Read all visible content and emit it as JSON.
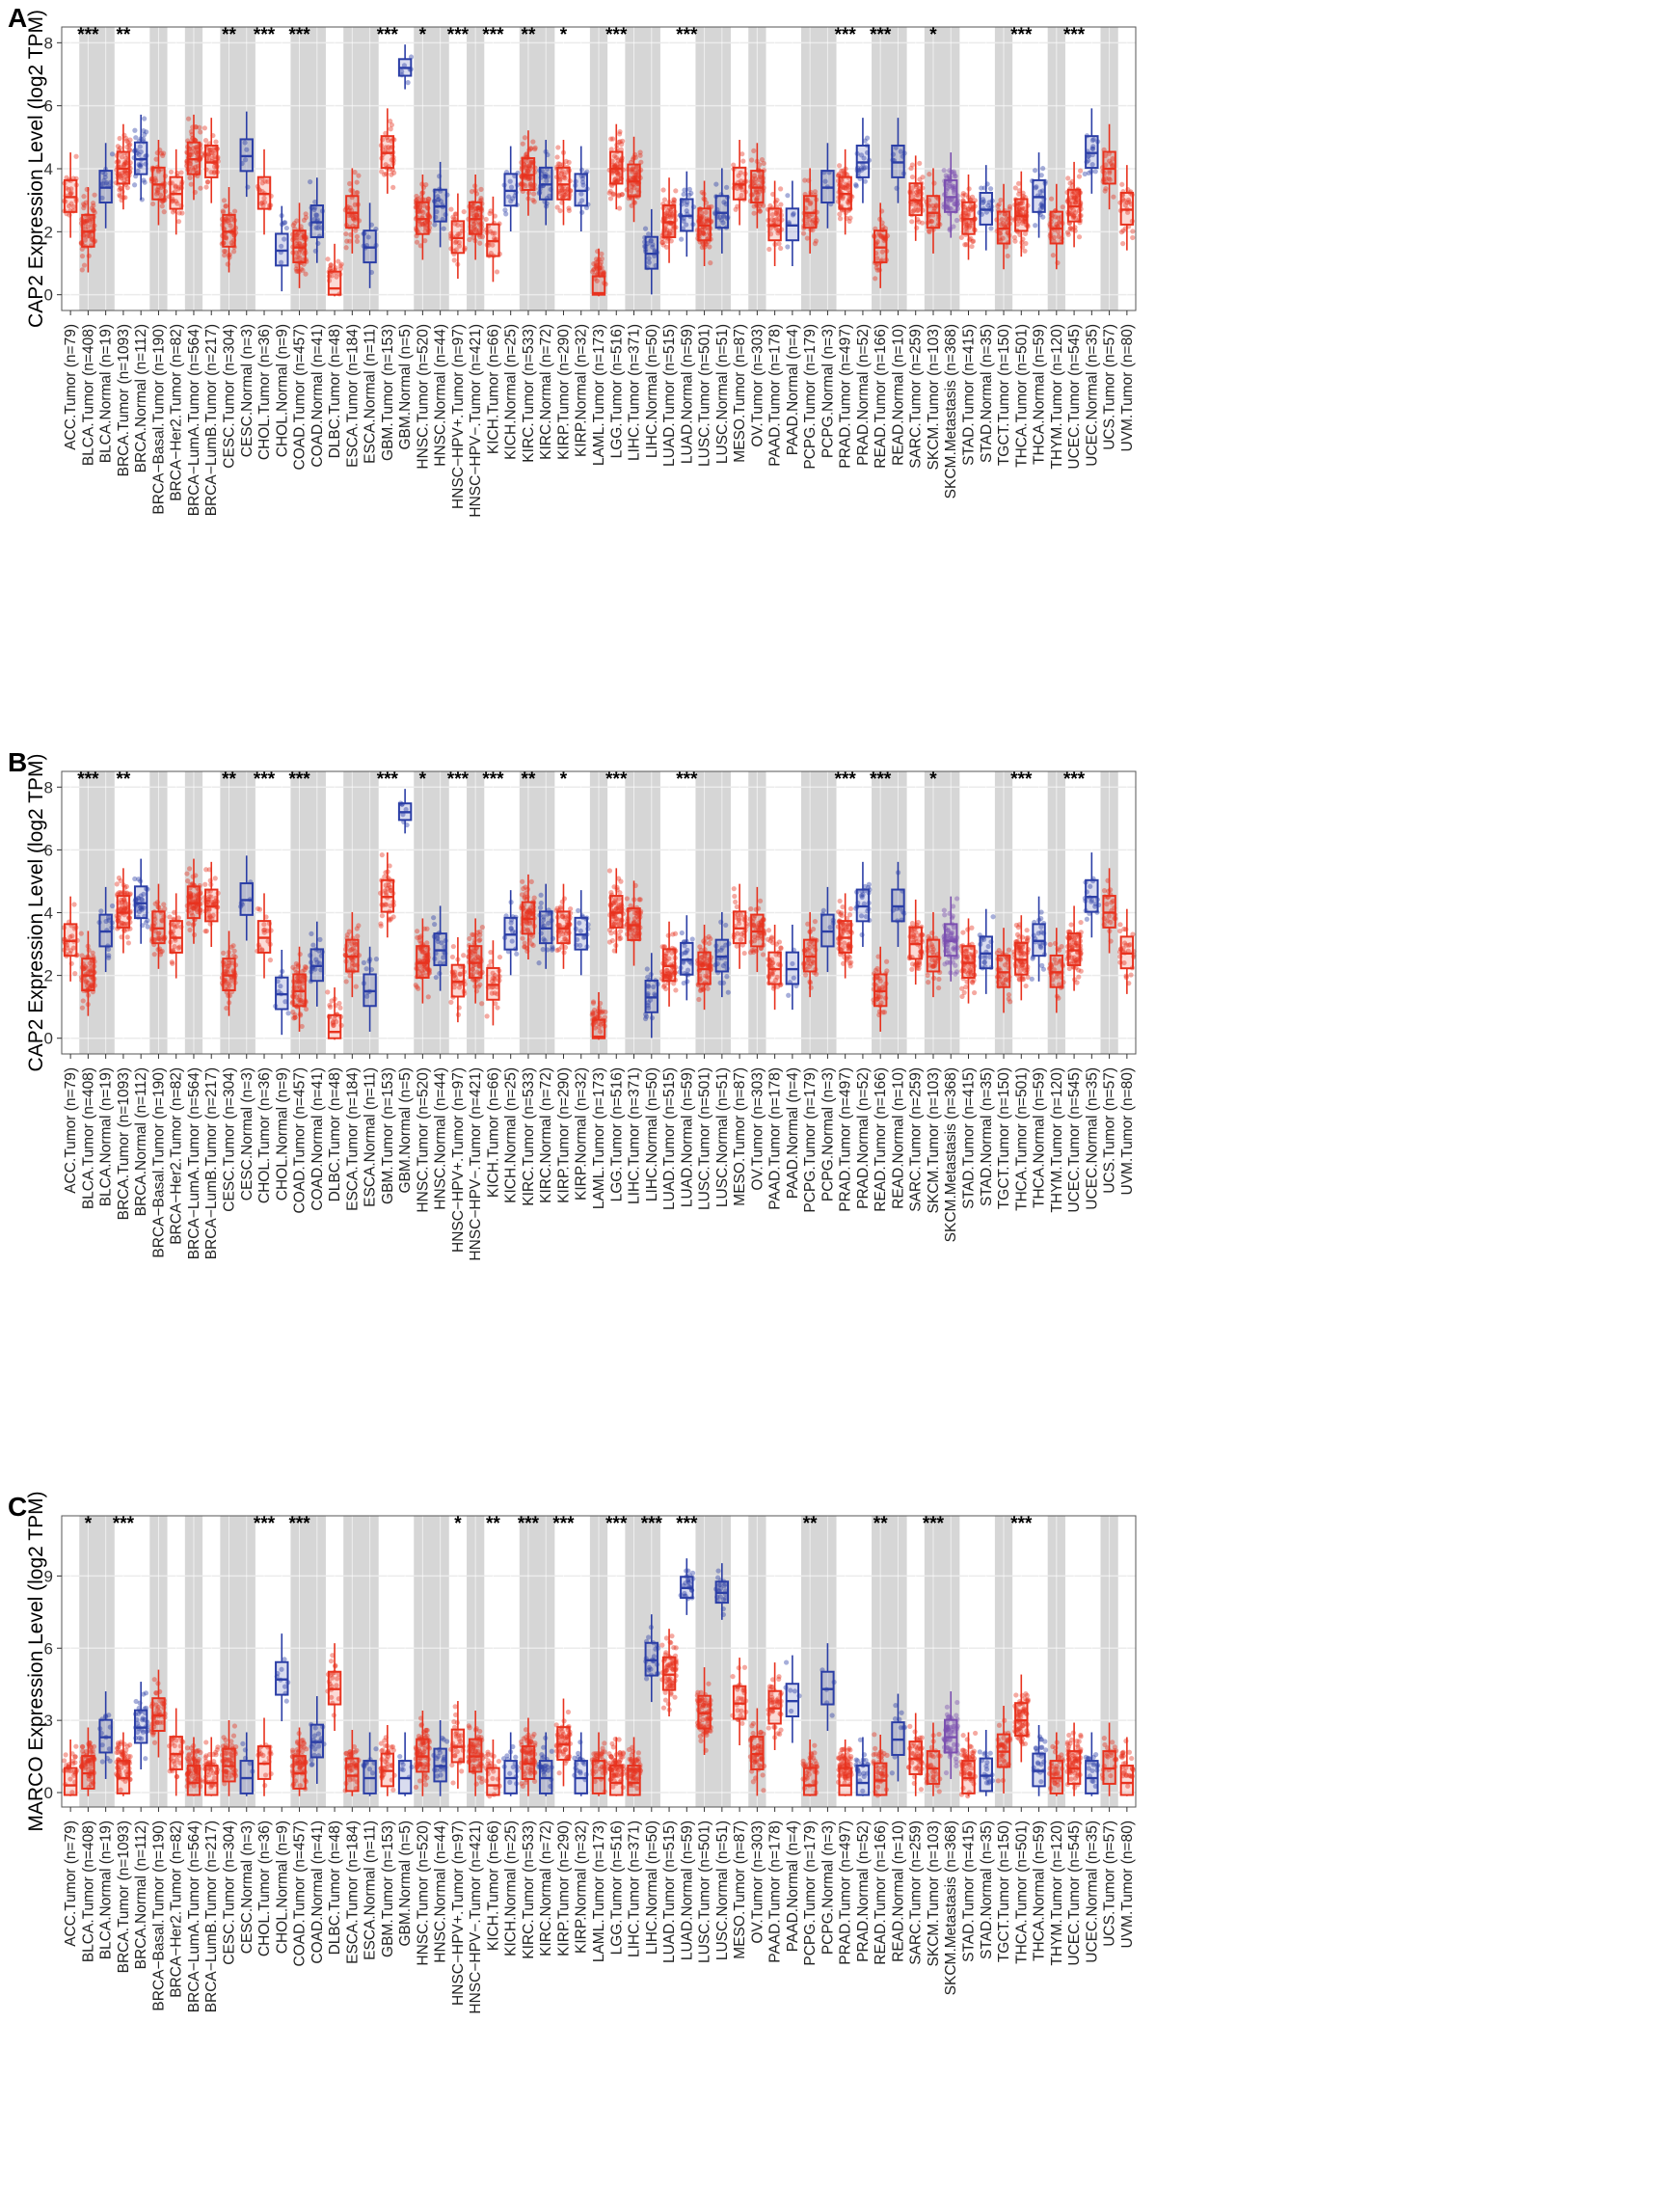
{
  "colors": {
    "tumor": "#e8321e",
    "normal": "#2b3ea6",
    "metastasis": "#7b4fb0",
    "shade": "#d6d6d6"
  },
  "categories": [
    "ACC.Tumor (n=79)",
    "BLCA.Tumor (n=408)",
    "BLCA.Normal (n=19)",
    "BRCA.Tumor (n=1093)",
    "BRCA.Normal (n=112)",
    "BRCA−Basal.Tumor (n=190)",
    "BRCA−Her2.Tumor (n=82)",
    "BRCA−LumA.Tumor (n=564)",
    "BRCA−LumB.Tumor (n=217)",
    "CESC.Tumor (n=304)",
    "CESC.Normal (n=3)",
    "CHOL.Tumor (n=36)",
    "CHOL.Normal (n=9)",
    "COAD.Tumor (n=457)",
    "COAD.Normal (n=41)",
    "DLBC.Tumor (n=48)",
    "ESCA.Tumor (n=184)",
    "ESCA.Normal (n=11)",
    "GBM.Tumor (n=153)",
    "GBM.Normal (n=5)",
    "HNSC.Tumor (n=520)",
    "HNSC.Normal (n=44)",
    "HNSC−HPV+.Tumor (n=97)",
    "HNSC−HPV−.Tumor (n=421)",
    "KICH.Tumor (n=66)",
    "KICH.Normal (n=25)",
    "KIRC.Tumor (n=533)",
    "KIRC.Normal (n=72)",
    "KIRP.Tumor (n=290)",
    "KIRP.Normal (n=32)",
    "LAML.Tumor (n=173)",
    "LGG.Tumor (n=516)",
    "LIHC.Tumor (n=371)",
    "LIHC.Normal (n=50)",
    "LUAD.Tumor (n=515)",
    "LUAD.Normal (n=59)",
    "LUSC.Tumor (n=501)",
    "LUSC.Normal (n=51)",
    "MESO.Tumor (n=87)",
    "OV.Tumor (n=303)",
    "PAAD.Tumor (n=178)",
    "PAAD.Normal (n=4)",
    "PCPG.Tumor (n=179)",
    "PCPG.Normal (n=3)",
    "PRAD.Tumor (n=497)",
    "PRAD.Normal (n=52)",
    "READ.Tumor (n=166)",
    "READ.Normal (n=10)",
    "SARC.Tumor (n=259)",
    "SKCM.Tumor (n=103)",
    "SKCM.Metastasis (n=368)",
    "STAD.Tumor (n=415)",
    "STAD.Normal (n=35)",
    "TGCT.Tumor (n=150)",
    "THCA.Tumor (n=501)",
    "THCA.Normal (n=59)",
    "THYM.Tumor (n=120)",
    "UCEC.Tumor (n=545)",
    "UCEC.Normal (n=35)",
    "UCS.Tumor (n=57)",
    "UVM.Tumor (n=80)"
  ],
  "chart_data": [
    {
      "panel": "A",
      "type": "box",
      "ylabel": "CAP2 Expression Level (log2 TPM)",
      "ylim": [
        -0.5,
        8.5
      ],
      "yticks": [
        0,
        2,
        4,
        6,
        8
      ],
      "medians": [
        3.1,
        2.0,
        3.4,
        4.0,
        4.3,
        3.5,
        3.2,
        4.3,
        4.2,
        2.0,
        4.4,
        3.2,
        1.4,
        1.5,
        2.3,
        0.2,
        2.6,
        1.5,
        4.5,
        7.2,
        2.4,
        2.8,
        1.8,
        2.4,
        1.7,
        3.3,
        3.8,
        3.5,
        3.5,
        3.3,
        0.05,
        4.0,
        3.6,
        1.3,
        2.3,
        2.5,
        2.2,
        2.6,
        3.5,
        3.4,
        2.2,
        2.2,
        2.6,
        3.4,
        3.2,
        4.2,
        1.5,
        4.2,
        3.0,
        2.6,
        3.1,
        2.4,
        2.7,
        2.1,
        2.5,
        3.1,
        2.1,
        2.8,
        4.5,
        4.0,
        2.7
      ],
      "significance": [
        "",
        "***",
        "",
        "**",
        "",
        "",
        "",
        "",
        "",
        "**",
        "",
        "***",
        "",
        "***",
        "",
        "",
        "",
        "",
        "***",
        "",
        "*",
        "",
        "***",
        "",
        "***",
        "",
        "**",
        "",
        "*",
        "",
        "",
        "***",
        "",
        "",
        "",
        "***",
        "",
        "",
        "",
        "",
        "",
        "",
        "",
        "",
        "***",
        "",
        "***",
        "",
        "",
        "*",
        "",
        "",
        "",
        "",
        "***",
        "",
        "",
        "***",
        "",
        "",
        ""
      ]
    },
    {
      "panel": "B",
      "type": "box",
      "ylabel": "CAP2 Expression Level (log2 TPM)",
      "ylim": [
        -0.5,
        8.5
      ],
      "yticks": [
        0,
        2,
        4,
        6,
        8
      ],
      "medians": [
        3.1,
        2.0,
        3.4,
        4.0,
        4.3,
        3.5,
        3.2,
        4.3,
        4.2,
        2.0,
        4.4,
        3.2,
        1.4,
        1.5,
        2.3,
        0.2,
        2.6,
        1.5,
        4.5,
        7.2,
        2.4,
        2.8,
        1.8,
        2.4,
        1.7,
        3.3,
        3.8,
        3.5,
        3.5,
        3.3,
        0.05,
        4.0,
        3.6,
        1.3,
        2.3,
        2.5,
        2.2,
        2.6,
        3.5,
        3.4,
        2.2,
        2.2,
        2.6,
        3.4,
        3.2,
        4.2,
        1.5,
        4.2,
        3.0,
        2.6,
        3.1,
        2.4,
        2.7,
        2.1,
        2.5,
        3.1,
        2.1,
        2.8,
        4.5,
        4.0,
        2.7
      ],
      "significance": [
        "",
        "***",
        "",
        "**",
        "",
        "",
        "",
        "",
        "",
        "**",
        "",
        "***",
        "",
        "***",
        "",
        "",
        "",
        "",
        "***",
        "",
        "*",
        "",
        "***",
        "",
        "***",
        "",
        "**",
        "",
        "*",
        "",
        "",
        "***",
        "",
        "",
        "",
        "***",
        "",
        "",
        "",
        "",
        "",
        "",
        "",
        "",
        "***",
        "",
        "***",
        "",
        "",
        "*",
        "",
        "",
        "",
        "",
        "***",
        "",
        "",
        "***",
        "",
        "",
        ""
      ]
    },
    {
      "panel": "C",
      "type": "box",
      "ylabel": "MARCO Expression Level (log2 TPM)",
      "ylim": [
        -0.6,
        11.5
      ],
      "yticks": [
        0,
        3,
        6,
        9
      ],
      "medians": [
        0.3,
        0.8,
        2.3,
        0.6,
        2.7,
        3.2,
        1.6,
        0.4,
        0.4,
        1.1,
        0.6,
        1.2,
        4.7,
        0.8,
        2.1,
        4.3,
        0.7,
        0.6,
        0.9,
        0.6,
        1.5,
        1.1,
        1.9,
        1.5,
        0.3,
        0.6,
        1.2,
        0.6,
        2.0,
        0.6,
        0.6,
        0.4,
        0.4,
        5.5,
        4.9,
        8.5,
        3.3,
        8.3,
        3.7,
        1.6,
        3.5,
        3.8,
        0.3,
        4.3,
        0.3,
        0.4,
        0.5,
        2.2,
        1.4,
        1.0,
        2.3,
        0.6,
        0.7,
        1.7,
        3.0,
        0.9,
        0.6,
        1.0,
        0.6,
        1.0,
        0.4
      ],
      "significance": [
        "",
        "*",
        "",
        "***",
        "",
        "",
        "",
        "",
        "",
        "",
        "",
        "***",
        "",
        "***",
        "",
        "",
        "",
        "",
        "",
        "",
        "",
        "",
        "*",
        "",
        "**",
        "",
        "***",
        "",
        "***",
        "",
        "",
        "***",
        "",
        "***",
        "",
        "***",
        "",
        "",
        "",
        "",
        "",
        "",
        "**",
        "",
        "",
        "",
        "**",
        "",
        "",
        "***",
        "",
        "",
        "",
        "",
        "***",
        "",
        "",
        "",
        "",
        "",
        ""
      ]
    }
  ],
  "panels": [
    {
      "letter": "A",
      "ylabel": "CAP2 Expression Level (log2 TPM)",
      "yticks": [
        "0",
        "2",
        "4",
        "6",
        "8"
      ]
    },
    {
      "letter": "B",
      "ylabel": "CAP2 Expression Level (log2 TPM)",
      "yticks": [
        "0",
        "2",
        "4",
        "6",
        "8"
      ]
    },
    {
      "letter": "C",
      "ylabel": "MARCO Expression Level (log2 TPM)",
      "yticks": [
        "0",
        "3",
        "6",
        "9"
      ]
    }
  ]
}
